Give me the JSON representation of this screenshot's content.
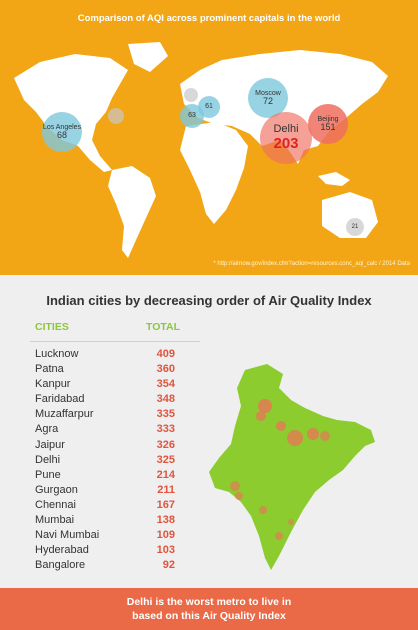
{
  "map": {
    "title": "Comparison of AQI across prominent capitals in the world",
    "source": "* http://airnow.gov/index.cfm?action=resources.conc_aqi_calc  /  2014 Data",
    "cities": [
      {
        "name": "Los Angeles",
        "value": "68"
      },
      {
        "name": "Moscow",
        "value": "72"
      },
      {
        "name": "Beijing",
        "value": "151"
      },
      {
        "name": "Delhi",
        "value": "203"
      },
      {
        "name": "",
        "value": "63"
      },
      {
        "name": "",
        "value": "61"
      },
      {
        "name": "",
        "value": "21"
      }
    ]
  },
  "list": {
    "title": "Indian cities by decreasing order of Air Quality Index",
    "col_cities": "CITIES",
    "col_total": "TOTAL",
    "rows": [
      {
        "city": "Lucknow",
        "total": "409"
      },
      {
        "city": "Patna",
        "total": "360"
      },
      {
        "city": "Kanpur",
        "total": "354"
      },
      {
        "city": "Faridabad",
        "total": "348"
      },
      {
        "city": "Muzaffarpur",
        "total": "335"
      },
      {
        "city": "Agra",
        "total": "333"
      },
      {
        "city": "Jaipur",
        "total": "326"
      },
      {
        "city": "Delhi",
        "total": "325"
      },
      {
        "city": "Pune",
        "total": "214"
      },
      {
        "city": "Gurgaon",
        "total": "211"
      },
      {
        "city": "Chennai",
        "total": "167"
      },
      {
        "city": "Mumbai",
        "total": "138"
      },
      {
        "city": "Navi Mumbai",
        "total": "109"
      },
      {
        "city": "Hyderabad",
        "total": "103"
      },
      {
        "city": "Bangalore",
        "total": "92"
      }
    ]
  },
  "footer": {
    "line1": "Delhi is the worst metro to live in",
    "line2": "based on this Air Quality Index"
  },
  "colors": {
    "map_background": "#f2a615",
    "accent_green": "#8dc63f",
    "value_red": "#e0553e",
    "footer_bg": "#ea6a47"
  }
}
